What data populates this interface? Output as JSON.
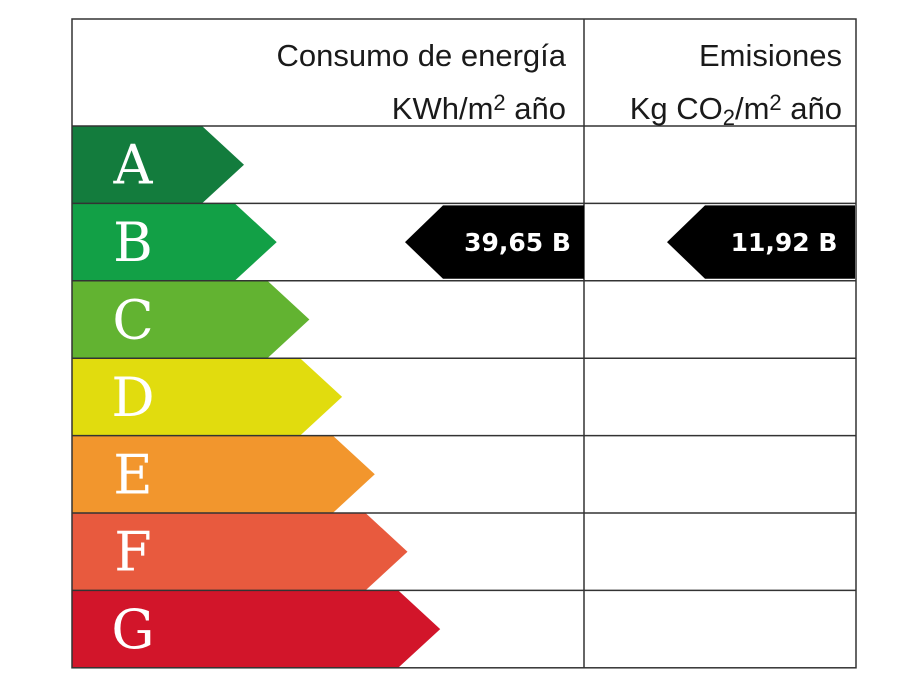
{
  "header": {
    "consumo_title": "Consumo de energía",
    "consumo_unit_pre": "KWh/m",
    "consumo_unit_sup": "2",
    "consumo_unit_post": " año",
    "emisiones_title": "Emisiones",
    "emisiones_unit_pre": "Kg CO",
    "emisiones_unit_sub": "2",
    "emisiones_unit_mid": "/m",
    "emisiones_unit_sup": "2",
    "emisiones_unit_post": " año"
  },
  "ratings": [
    {
      "letter": "A",
      "color": "#137c3d"
    },
    {
      "letter": "B",
      "color": "#12a046"
    },
    {
      "letter": "C",
      "color": "#62b331"
    },
    {
      "letter": "D",
      "color": "#e1dc0e"
    },
    {
      "letter": "E",
      "color": "#f2962d"
    },
    {
      "letter": "F",
      "color": "#e85a3e"
    },
    {
      "letter": "G",
      "color": "#d2152a"
    }
  ],
  "consumo_indicator": {
    "label": "39,65 B",
    "rating": "B"
  },
  "emisiones_indicator": {
    "label": "11,92 B",
    "rating": "B"
  },
  "colors": {
    "grid": "#333333",
    "indicator": "#000000",
    "indicator_text": "#ffffff",
    "letter": "#ffffff"
  }
}
